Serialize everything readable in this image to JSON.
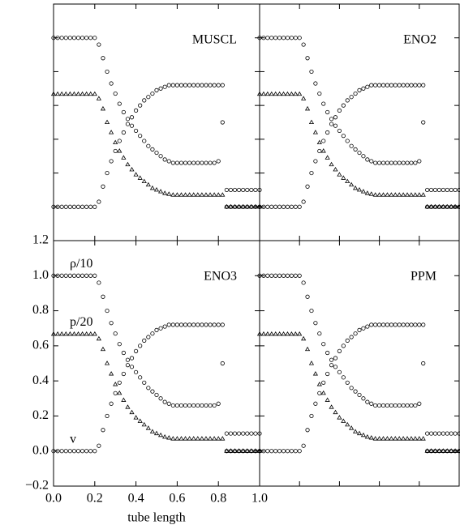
{
  "chart_data": [
    {
      "type": "scatter",
      "title": "MUSCL",
      "tick_labels": false,
      "xlim": [
        0,
        1
      ],
      "ylim": [
        -0.2,
        1.2
      ],
      "xticks": [
        0,
        0.2,
        0.4,
        0.6,
        0.8,
        1
      ],
      "yticks": [
        -0.2,
        0,
        0.2,
        0.4,
        0.6,
        0.8,
        1,
        1.2
      ],
      "x": [
        0,
        0.02,
        0.04,
        0.06,
        0.08,
        0.1,
        0.12,
        0.14,
        0.16,
        0.18,
        0.2,
        0.22,
        0.24,
        0.26,
        0.28,
        0.3,
        0.32,
        0.34,
        0.36,
        0.38,
        0.4,
        0.42,
        0.44,
        0.46,
        0.48,
        0.5,
        0.52,
        0.54,
        0.56,
        0.58,
        0.6,
        0.62,
        0.64,
        0.66,
        0.68,
        0.7,
        0.72,
        0.74,
        0.76,
        0.78,
        0.8,
        0.82,
        0.84,
        0.86,
        0.88,
        0.9,
        0.92,
        0.94,
        0.96,
        0.98,
        1
      ],
      "series": [
        {
          "marker": "circle",
          "color": "#000",
          "values": [
            1,
            1,
            1,
            1,
            1,
            1,
            1,
            1,
            1,
            1,
            1,
            0.96,
            0.88,
            0.8,
            0.73,
            0.67,
            0.61,
            0.56,
            0.52,
            0.48,
            0.45,
            0.42,
            0.39,
            0.36,
            0.34,
            0.32,
            0.3,
            0.28,
            0.27,
            0.26,
            0.26,
            0.26,
            0.26,
            0.26,
            0.26,
            0.26,
            0.26,
            0.26,
            0.26,
            0.26,
            0.27,
            0.5,
            0.1,
            0.1,
            0.1,
            0.1,
            0.1,
            0.1,
            0.1,
            0.1,
            0.1
          ]
        },
        {
          "marker": "triangle",
          "color": "#000",
          "values": [
            0.667,
            0.667,
            0.667,
            0.667,
            0.667,
            0.667,
            0.667,
            0.667,
            0.667,
            0.667,
            0.667,
            0.64,
            0.58,
            0.5,
            0.44,
            0.38,
            0.33,
            0.29,
            0.25,
            0.22,
            0.19,
            0.17,
            0.15,
            0.13,
            0.11,
            0.1,
            0.09,
            0.08,
            0.075,
            0.07,
            0.07,
            0.07,
            0.07,
            0.07,
            0.07,
            0.07,
            0.07,
            0.07,
            0.07,
            0.07,
            0.07,
            0.07,
            0,
            0,
            0,
            0,
            0,
            0,
            0,
            0,
            0
          ]
        },
        {
          "marker": "circle",
          "color": "#000",
          "values": [
            0,
            0,
            0,
            0,
            0,
            0,
            0,
            0,
            0,
            0,
            0,
            0.03,
            0.12,
            0.2,
            0.27,
            0.33,
            0.39,
            0.44,
            0.49,
            0.53,
            0.57,
            0.6,
            0.63,
            0.65,
            0.67,
            0.69,
            0.7,
            0.71,
            0.72,
            0.72,
            0.72,
            0.72,
            0.72,
            0.72,
            0.72,
            0.72,
            0.72,
            0.72,
            0.72,
            0.72,
            0.72,
            0.72,
            0,
            0,
            0,
            0,
            0,
            0,
            0,
            0,
            0
          ]
        }
      ]
    },
    {
      "type": "scatter",
      "title": "ENO2",
      "tick_labels": false,
      "xlim": [
        0,
        1
      ],
      "ylim": [
        -0.2,
        1.2
      ],
      "xticks": [
        0,
        0.2,
        0.4,
        0.6,
        0.8,
        1
      ],
      "yticks": [
        -0.2,
        0,
        0.2,
        0.4,
        0.6,
        0.8,
        1,
        1.2
      ],
      "x": [
        0,
        0.02,
        0.04,
        0.06,
        0.08,
        0.1,
        0.12,
        0.14,
        0.16,
        0.18,
        0.2,
        0.22,
        0.24,
        0.26,
        0.28,
        0.3,
        0.32,
        0.34,
        0.36,
        0.38,
        0.4,
        0.42,
        0.44,
        0.46,
        0.48,
        0.5,
        0.52,
        0.54,
        0.56,
        0.58,
        0.6,
        0.62,
        0.64,
        0.66,
        0.68,
        0.7,
        0.72,
        0.74,
        0.76,
        0.78,
        0.8,
        0.82,
        0.84,
        0.86,
        0.88,
        0.9,
        0.92,
        0.94,
        0.96,
        0.98,
        1
      ],
      "series": [
        {
          "marker": "circle",
          "color": "#000",
          "values": [
            1,
            1,
            1,
            1,
            1,
            1,
            1,
            1,
            1,
            1,
            1,
            0.96,
            0.88,
            0.8,
            0.73,
            0.67,
            0.61,
            0.56,
            0.52,
            0.48,
            0.45,
            0.42,
            0.39,
            0.36,
            0.34,
            0.32,
            0.3,
            0.28,
            0.27,
            0.26,
            0.26,
            0.26,
            0.26,
            0.26,
            0.26,
            0.26,
            0.26,
            0.26,
            0.26,
            0.26,
            0.27,
            0.5,
            0.1,
            0.1,
            0.1,
            0.1,
            0.1,
            0.1,
            0.1,
            0.1,
            0.1
          ]
        },
        {
          "marker": "triangle",
          "color": "#000",
          "values": [
            0.667,
            0.667,
            0.667,
            0.667,
            0.667,
            0.667,
            0.667,
            0.667,
            0.667,
            0.667,
            0.667,
            0.64,
            0.58,
            0.5,
            0.44,
            0.38,
            0.33,
            0.29,
            0.25,
            0.22,
            0.19,
            0.17,
            0.15,
            0.13,
            0.11,
            0.1,
            0.09,
            0.08,
            0.075,
            0.07,
            0.07,
            0.07,
            0.07,
            0.07,
            0.07,
            0.07,
            0.07,
            0.07,
            0.07,
            0.07,
            0.07,
            0.07,
            0,
            0,
            0,
            0,
            0,
            0,
            0,
            0,
            0
          ]
        },
        {
          "marker": "circle",
          "color": "#000",
          "values": [
            0,
            0,
            0,
            0,
            0,
            0,
            0,
            0,
            0,
            0,
            0,
            0.03,
            0.12,
            0.2,
            0.27,
            0.33,
            0.39,
            0.44,
            0.49,
            0.53,
            0.57,
            0.6,
            0.63,
            0.65,
            0.67,
            0.69,
            0.7,
            0.71,
            0.72,
            0.72,
            0.72,
            0.72,
            0.72,
            0.72,
            0.72,
            0.72,
            0.72,
            0.72,
            0.72,
            0.72,
            0.72,
            0.72,
            0,
            0,
            0,
            0,
            0,
            0,
            0,
            0,
            0
          ]
        }
      ]
    },
    {
      "type": "scatter",
      "title": "ENO3",
      "tick_labels": true,
      "xlabel": "tube length",
      "xlim": [
        0,
        1
      ],
      "ylim": [
        -0.2,
        1.2
      ],
      "xticks": [
        {
          "value": 0,
          "label": "0.0"
        },
        {
          "value": 0.2,
          "label": "0.2"
        },
        {
          "value": 0.4,
          "label": "0.4"
        },
        {
          "value": 0.6,
          "label": "0.6"
        },
        {
          "value": 0.8,
          "label": "0.8"
        },
        {
          "value": 1,
          "label": "1.0"
        }
      ],
      "yticks": [
        {
          "value": -0.2,
          "label": "−0.2"
        },
        {
          "value": 0,
          "label": "0.0"
        },
        {
          "value": 0.2,
          "label": "0.2"
        },
        {
          "value": 0.4,
          "label": "0.4"
        },
        {
          "value": 0.6,
          "label": "0.6"
        },
        {
          "value": 0.8,
          "label": "0.8"
        },
        {
          "value": 1,
          "label": "1.0"
        },
        {
          "value": 1.2,
          "label": "1.2"
        }
      ],
      "x": [
        0,
        0.02,
        0.04,
        0.06,
        0.08,
        0.1,
        0.12,
        0.14,
        0.16,
        0.18,
        0.2,
        0.22,
        0.24,
        0.26,
        0.28,
        0.3,
        0.32,
        0.34,
        0.36,
        0.38,
        0.4,
        0.42,
        0.44,
        0.46,
        0.48,
        0.5,
        0.52,
        0.54,
        0.56,
        0.58,
        0.6,
        0.62,
        0.64,
        0.66,
        0.68,
        0.7,
        0.72,
        0.74,
        0.76,
        0.78,
        0.8,
        0.82,
        0.84,
        0.86,
        0.88,
        0.9,
        0.92,
        0.94,
        0.96,
        0.98,
        1
      ],
      "series": [
        {
          "name": "ρ/10",
          "marker": "circle",
          "color": "#000",
          "values": [
            1,
            1,
            1,
            1,
            1,
            1,
            1,
            1,
            1,
            1,
            1,
            0.96,
            0.88,
            0.8,
            0.73,
            0.67,
            0.61,
            0.56,
            0.52,
            0.48,
            0.45,
            0.42,
            0.39,
            0.36,
            0.34,
            0.32,
            0.3,
            0.28,
            0.27,
            0.26,
            0.26,
            0.26,
            0.26,
            0.26,
            0.26,
            0.26,
            0.26,
            0.26,
            0.26,
            0.26,
            0.27,
            0.5,
            0.1,
            0.1,
            0.1,
            0.1,
            0.1,
            0.1,
            0.1,
            0.1,
            0.1
          ]
        },
        {
          "name": "p/20",
          "marker": "triangle",
          "color": "#000",
          "values": [
            0.667,
            0.667,
            0.667,
            0.667,
            0.667,
            0.667,
            0.667,
            0.667,
            0.667,
            0.667,
            0.667,
            0.64,
            0.58,
            0.5,
            0.44,
            0.38,
            0.33,
            0.29,
            0.25,
            0.22,
            0.19,
            0.17,
            0.15,
            0.13,
            0.11,
            0.1,
            0.09,
            0.08,
            0.075,
            0.07,
            0.07,
            0.07,
            0.07,
            0.07,
            0.07,
            0.07,
            0.07,
            0.07,
            0.07,
            0.07,
            0.07,
            0.07,
            0,
            0,
            0,
            0,
            0,
            0,
            0,
            0,
            0
          ]
        },
        {
          "name": "v",
          "marker": "circle",
          "color": "#000",
          "values": [
            0,
            0,
            0,
            0,
            0,
            0,
            0,
            0,
            0,
            0,
            0,
            0.03,
            0.12,
            0.2,
            0.27,
            0.33,
            0.39,
            0.44,
            0.49,
            0.53,
            0.57,
            0.6,
            0.63,
            0.65,
            0.67,
            0.69,
            0.7,
            0.71,
            0.72,
            0.72,
            0.72,
            0.72,
            0.72,
            0.72,
            0.72,
            0.72,
            0.72,
            0.72,
            0.72,
            0.72,
            0.72,
            0.72,
            0,
            0,
            0,
            0,
            0,
            0,
            0,
            0,
            0
          ]
        }
      ]
    },
    {
      "type": "scatter",
      "title": "PPM",
      "tick_labels": false,
      "xlim": [
        0,
        1
      ],
      "ylim": [
        -0.2,
        1.2
      ],
      "xticks": [
        0,
        0.2,
        0.4,
        0.6,
        0.8,
        1
      ],
      "yticks": [
        -0.2,
        0,
        0.2,
        0.4,
        0.6,
        0.8,
        1,
        1.2
      ],
      "x": [
        0,
        0.02,
        0.04,
        0.06,
        0.08,
        0.1,
        0.12,
        0.14,
        0.16,
        0.18,
        0.2,
        0.22,
        0.24,
        0.26,
        0.28,
        0.3,
        0.32,
        0.34,
        0.36,
        0.38,
        0.4,
        0.42,
        0.44,
        0.46,
        0.48,
        0.5,
        0.52,
        0.54,
        0.56,
        0.58,
        0.6,
        0.62,
        0.64,
        0.66,
        0.68,
        0.7,
        0.72,
        0.74,
        0.76,
        0.78,
        0.8,
        0.82,
        0.84,
        0.86,
        0.88,
        0.9,
        0.92,
        0.94,
        0.96,
        0.98,
        1
      ],
      "series": [
        {
          "marker": "circle",
          "color": "#000",
          "values": [
            1,
            1,
            1,
            1,
            1,
            1,
            1,
            1,
            1,
            1,
            1,
            0.96,
            0.88,
            0.8,
            0.73,
            0.67,
            0.61,
            0.56,
            0.52,
            0.48,
            0.45,
            0.42,
            0.39,
            0.36,
            0.34,
            0.32,
            0.3,
            0.28,
            0.27,
            0.26,
            0.26,
            0.26,
            0.26,
            0.26,
            0.26,
            0.26,
            0.26,
            0.26,
            0.26,
            0.26,
            0.27,
            0.5,
            0.1,
            0.1,
            0.1,
            0.1,
            0.1,
            0.1,
            0.1,
            0.1,
            0.1
          ]
        },
        {
          "marker": "triangle",
          "color": "#000",
          "values": [
            0.667,
            0.667,
            0.667,
            0.667,
            0.667,
            0.667,
            0.667,
            0.667,
            0.667,
            0.667,
            0.667,
            0.64,
            0.58,
            0.5,
            0.44,
            0.38,
            0.33,
            0.29,
            0.25,
            0.22,
            0.19,
            0.17,
            0.15,
            0.13,
            0.11,
            0.1,
            0.09,
            0.08,
            0.075,
            0.07,
            0.07,
            0.07,
            0.07,
            0.07,
            0.07,
            0.07,
            0.07,
            0.07,
            0.07,
            0.07,
            0.07,
            0.07,
            0,
            0,
            0,
            0,
            0,
            0,
            0,
            0,
            0
          ]
        },
        {
          "marker": "circle",
          "color": "#000",
          "values": [
            0,
            0,
            0,
            0,
            0,
            0,
            0,
            0,
            0,
            0,
            0,
            0.03,
            0.12,
            0.2,
            0.27,
            0.33,
            0.39,
            0.44,
            0.49,
            0.53,
            0.57,
            0.6,
            0.63,
            0.65,
            0.67,
            0.69,
            0.7,
            0.71,
            0.72,
            0.72,
            0.72,
            0.72,
            0.72,
            0.72,
            0.72,
            0.72,
            0.72,
            0.72,
            0.72,
            0.72,
            0.72,
            0.72,
            0,
            0,
            0,
            0,
            0,
            0,
            0,
            0,
            0
          ]
        }
      ]
    }
  ]
}
